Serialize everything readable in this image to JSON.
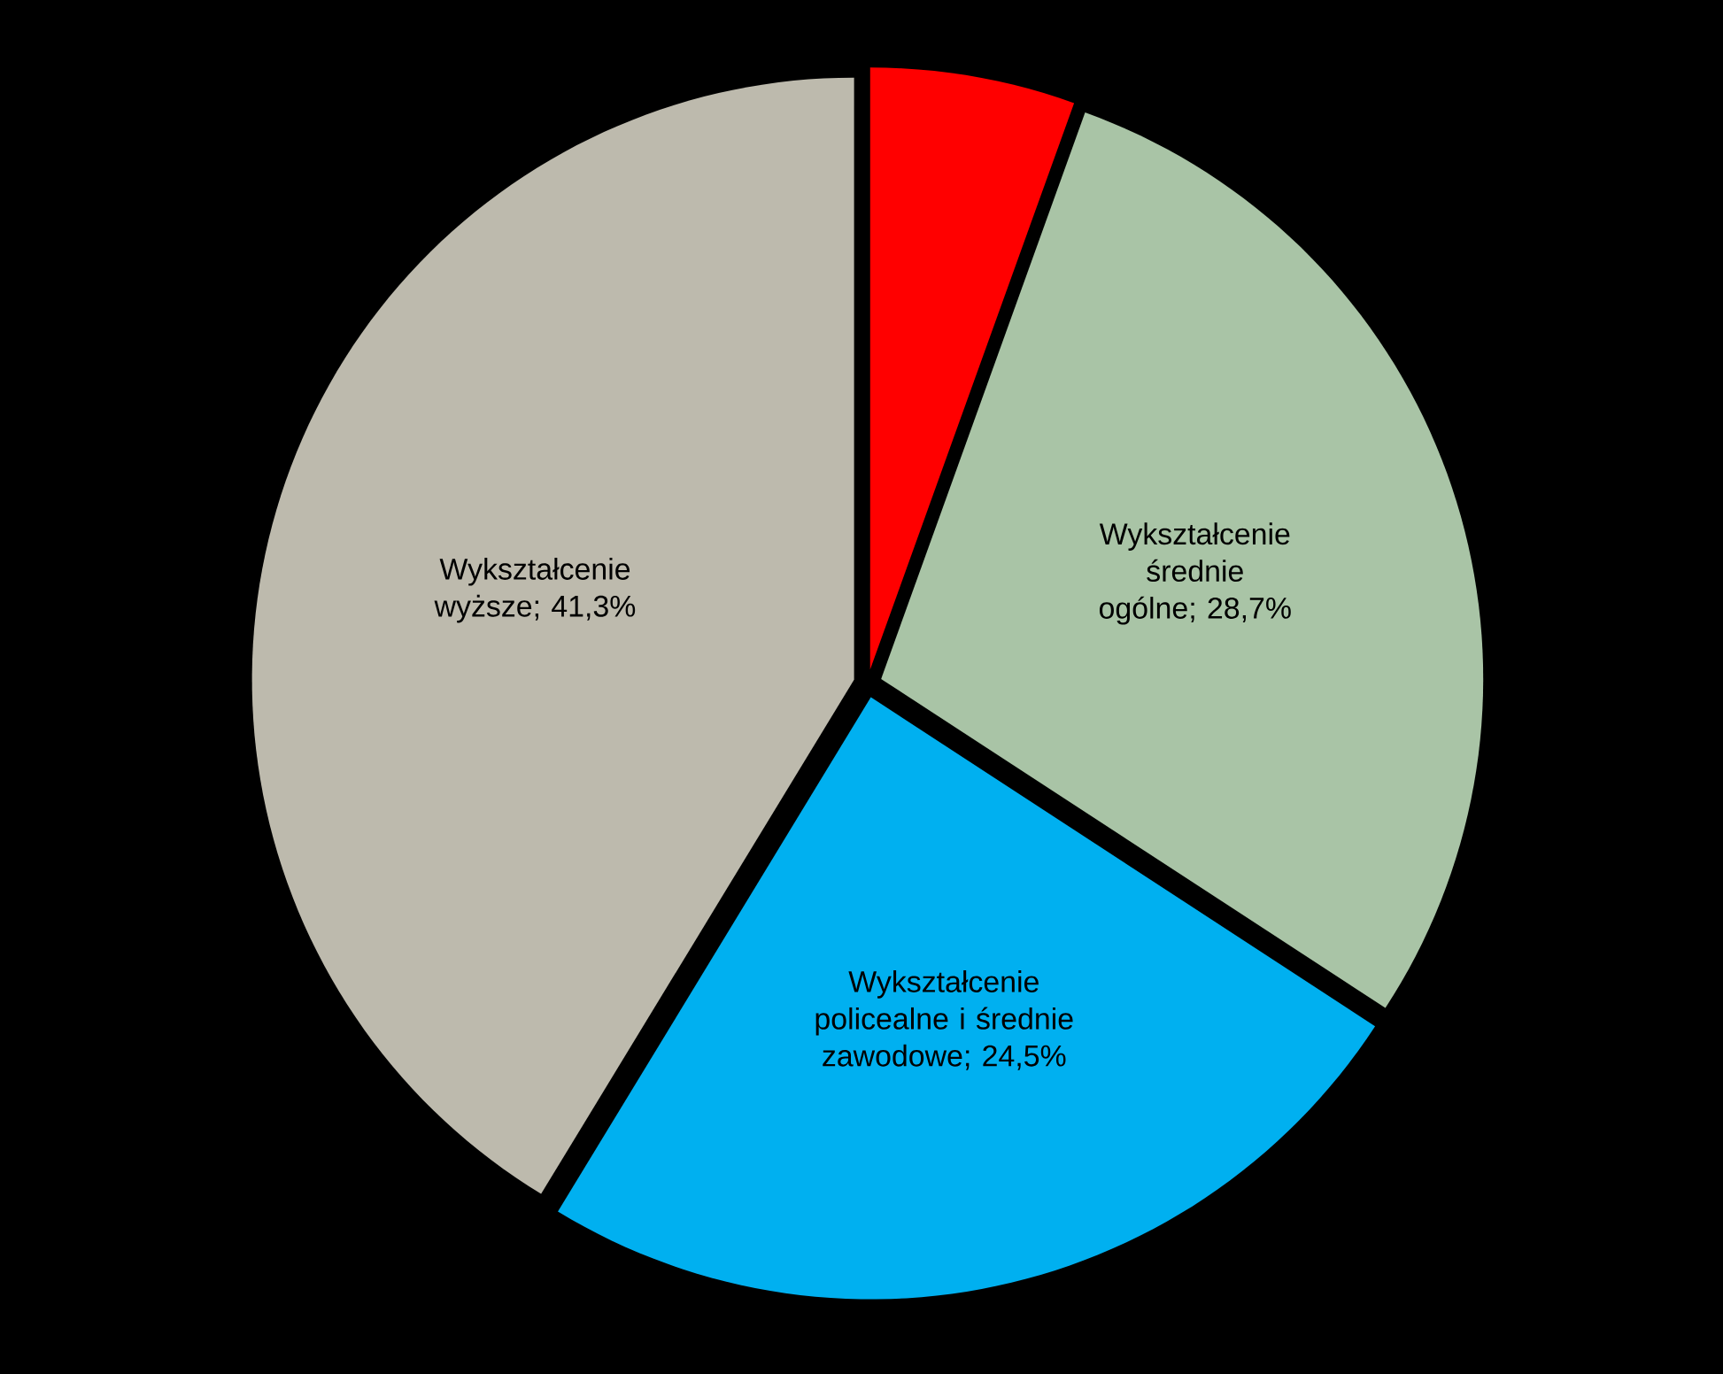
{
  "chart_data": {
    "type": "pie",
    "categories": [
      null,
      "Wykształcenie średnie ogólne",
      "Wykształcenie policealne i średnie zawodowe",
      "Wykształcenie wyższe"
    ],
    "values": [
      5.5,
      28.7,
      24.5,
      41.3
    ],
    "value_labels": [
      null,
      "; 28,7%",
      "; 24,5%",
      "; 41,3%"
    ],
    "colors": [
      "#ff0000",
      "#a9c4a6",
      "#00b0f0",
      "#bdbaad"
    ]
  }
}
